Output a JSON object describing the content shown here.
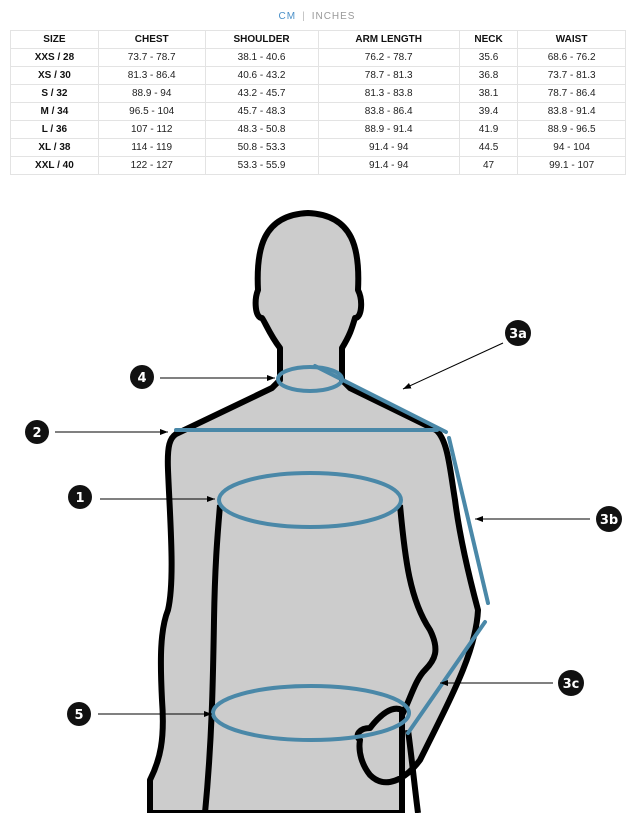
{
  "unit_toggle": {
    "cm": "CM",
    "separator": "|",
    "inches": "INCHES",
    "active": "CM"
  },
  "table": {
    "headers": [
      "SIZE",
      "CHEST",
      "SHOULDER",
      "ARM LENGTH",
      "NECK",
      "WAIST"
    ],
    "rows": [
      [
        "XXS / 28",
        "73.7 - 78.7",
        "38.1 - 40.6",
        "76.2 - 78.7",
        "35.6",
        "68.6 - 76.2"
      ],
      [
        "XS / 30",
        "81.3 - 86.4",
        "40.6 - 43.2",
        "78.7 - 81.3",
        "36.8",
        "73.7 - 81.3"
      ],
      [
        "S / 32",
        "88.9 - 94",
        "43.2 - 45.7",
        "81.3 - 83.8",
        "38.1",
        "78.7 - 86.4"
      ],
      [
        "M / 34",
        "96.5 - 104",
        "45.7 - 48.3",
        "83.8 - 86.4",
        "39.4",
        "83.8 - 91.4"
      ],
      [
        "L / 36",
        "107 - 112",
        "48.3 - 50.8",
        "88.9 - 91.4",
        "41.9",
        "88.9 - 96.5"
      ],
      [
        "XL / 38",
        "114 - 119",
        "50.8 - 53.3",
        "91.4 - 94",
        "44.5",
        "94 - 104"
      ],
      [
        "XXL / 40",
        "122 - 127",
        "53.3 - 55.9",
        "91.4 - 94",
        "47",
        "99.1 - 107"
      ]
    ]
  },
  "diagram": {
    "labels": {
      "chest": "1",
      "shoulder": "2",
      "arm_a": "3a",
      "arm_b": "3b",
      "arm_c": "3c",
      "neck": "4",
      "waist": "5"
    },
    "colors": {
      "measure": "#4a88a8",
      "body": "#cccccc",
      "outline": "#000000",
      "active_unit": "#4a90c8"
    }
  }
}
